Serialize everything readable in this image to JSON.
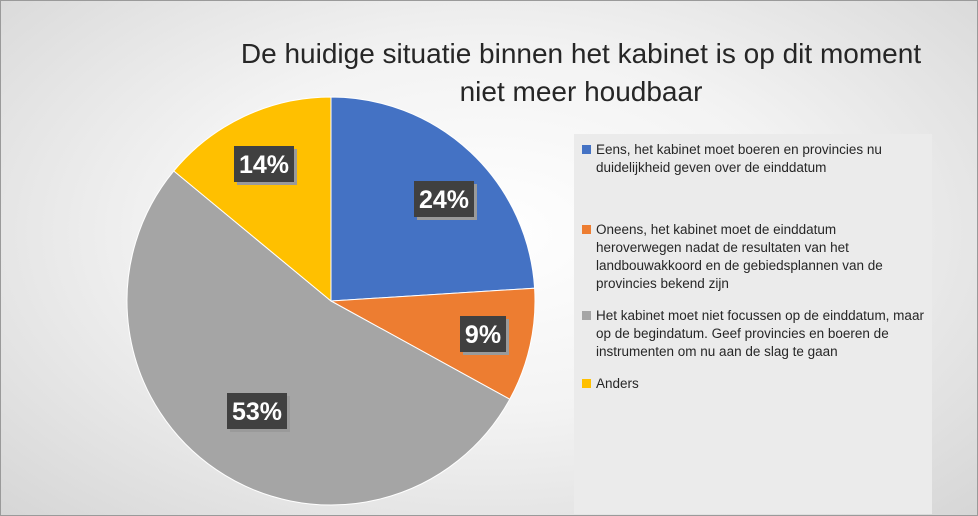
{
  "chart_data": {
    "type": "pie",
    "title_lines": [
      "De huidige situatie binnen het kabinet is op dit moment",
      "niet meer houdbaar"
    ],
    "categories": [
      "Eens, het kabinet moet boeren en provincies nu duidelijkheid geven over de einddatum",
      "Oneens, het kabinet moet de einddatum heroverwegen nadat de resultaten van het landbouwakkoord en de gebiedsplannen van de provincies bekend zijn",
      "Het kabinet moet niet focussen op de einddatum, maar op de begindatum. Geef provincies en boeren de instrumenten om nu aan de slag te gaan",
      "Anders"
    ],
    "values": [
      24,
      9,
      53,
      14
    ],
    "data_labels": [
      "24%",
      "9%",
      "53%",
      "14%"
    ],
    "colors": [
      "#4472c4",
      "#ed7d31",
      "#a5a5a5",
      "#ffc000"
    ],
    "legend_position": "right"
  }
}
